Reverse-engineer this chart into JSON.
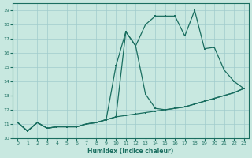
{
  "xlabel": "Humidex (Indice chaleur)",
  "bg_color": "#c8e8e0",
  "line_color": "#1a6e60",
  "grid_color": "#a0cccc",
  "xlim": [
    -0.5,
    23.5
  ],
  "ylim": [
    10,
    19.5
  ],
  "xticks": [
    0,
    1,
    2,
    3,
    4,
    5,
    6,
    7,
    8,
    9,
    10,
    11,
    12,
    13,
    14,
    15,
    16,
    17,
    18,
    19,
    20,
    21,
    22,
    23
  ],
  "yticks": [
    10,
    11,
    12,
    13,
    14,
    15,
    16,
    17,
    18,
    19
  ],
  "line1_x": [
    0,
    1,
    2,
    3,
    4,
    5,
    6,
    7,
    8,
    9,
    10,
    11,
    12,
    13,
    14,
    15,
    16,
    17,
    18,
    19,
    20,
    21,
    22,
    23
  ],
  "line1_y": [
    11.1,
    10.5,
    11.1,
    10.7,
    10.8,
    10.8,
    10.8,
    11.0,
    11.1,
    11.3,
    11.5,
    11.6,
    11.7,
    11.8,
    11.9,
    12.0,
    12.1,
    12.2,
    12.4,
    12.6,
    12.8,
    13.0,
    13.2,
    13.5
  ],
  "line2_x": [
    0,
    1,
    2,
    3,
    4,
    5,
    6,
    7,
    8,
    9,
    10,
    11,
    12,
    13,
    14,
    15,
    16,
    17,
    18,
    19,
    20,
    21,
    22,
    23
  ],
  "line2_y": [
    11.1,
    10.5,
    11.1,
    10.7,
    10.8,
    10.8,
    10.8,
    11.0,
    11.1,
    11.3,
    11.5,
    17.5,
    16.5,
    13.1,
    12.1,
    12.0,
    12.1,
    12.2,
    12.4,
    12.6,
    12.8,
    13.0,
    13.2,
    13.5
  ],
  "line3_x": [
    0,
    1,
    2,
    3,
    4,
    5,
    6,
    7,
    8,
    9,
    10,
    11,
    12,
    13,
    14,
    15,
    16,
    17,
    18,
    19,
    20,
    21,
    22,
    23
  ],
  "line3_y": [
    11.1,
    10.5,
    11.1,
    10.7,
    10.8,
    10.8,
    10.8,
    11.0,
    11.1,
    11.3,
    15.1,
    17.5,
    16.5,
    18.0,
    18.6,
    18.6,
    18.6,
    17.2,
    19.0,
    16.3,
    16.4,
    14.8,
    14.0,
    13.5
  ]
}
